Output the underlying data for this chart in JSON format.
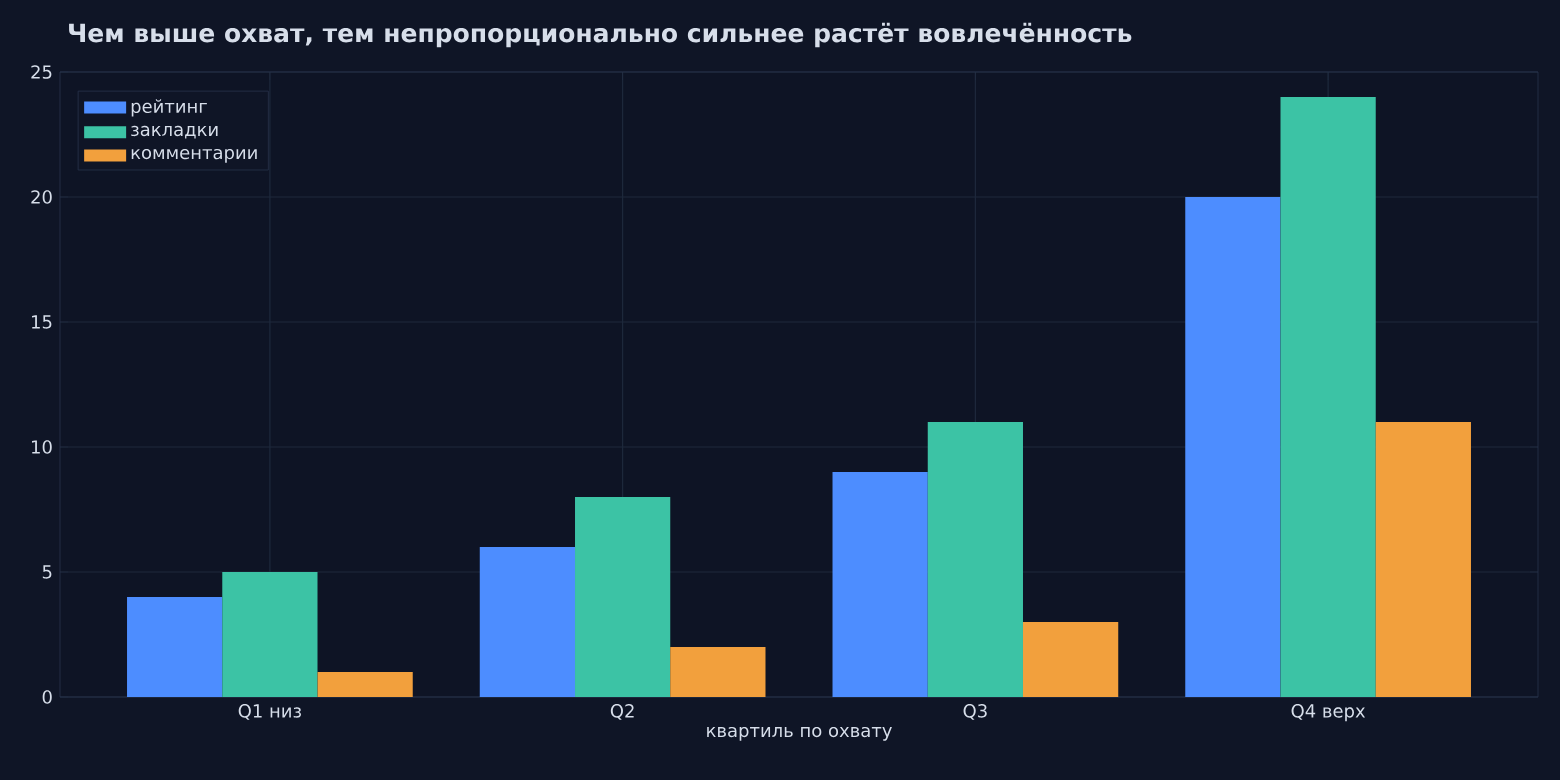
{
  "chart_data": {
    "type": "bar",
    "title": "Чем выше охват, тем непропорционально сильнее растёт вовлечённость",
    "xlabel": "квартиль по охвату",
    "categories": [
      "Q1 низ",
      "Q2",
      "Q3",
      "Q4 верх"
    ],
    "series": [
      {
        "name": "рейтинг",
        "color": "#4d8dff",
        "values": [
          4,
          6,
          9,
          20
        ]
      },
      {
        "name": "закладки",
        "color": "#3cc3a5",
        "values": [
          5,
          8,
          11,
          24
        ]
      },
      {
        "name": "комментарии",
        "color": "#f2a03d",
        "values": [
          1,
          2,
          3,
          11
        ]
      }
    ],
    "ylim": [
      0,
      25
    ],
    "yticks": [
      0,
      5,
      10,
      15,
      20,
      25
    ],
    "grid": true,
    "legend": "top left"
  }
}
